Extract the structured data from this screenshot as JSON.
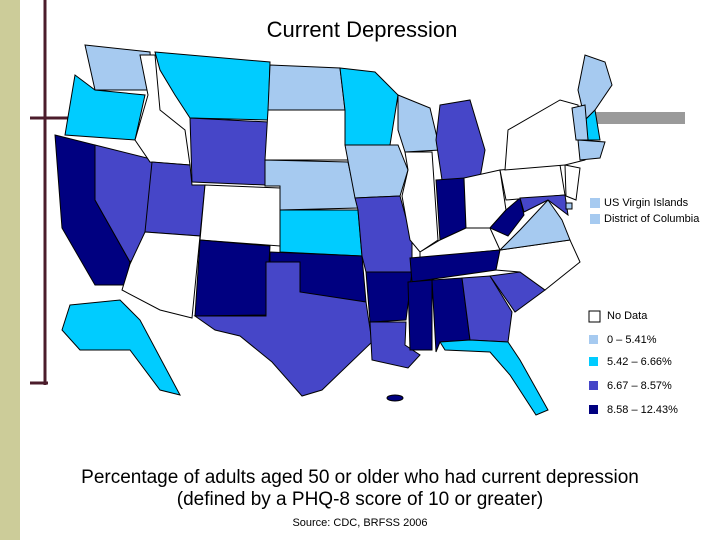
{
  "title": "Current Depression",
  "territories": [
    {
      "label": "US Virgin Islands",
      "class": 1
    },
    {
      "label": "District of Columbia",
      "class": 1
    }
  ],
  "legend": {
    "items": [
      {
        "label": "No Data",
        "color": "#ffffff"
      },
      {
        "label": "0 – 5.41%",
        "color": "#a6caf0"
      },
      {
        "label": "5.42 – 6.66%",
        "color": "#00ccff"
      },
      {
        "label": "6.67 – 8.57%",
        "color": "#4646c8"
      },
      {
        "label": "8.58 – 12.43%",
        "color": "#000080"
      }
    ]
  },
  "caption": [
    "Percentage of adults aged 50 or older who had current depression",
    "(defined by a PHQ-8 score of 10 or greater)"
  ],
  "source": "Source:  CDC, BRFSS 2006"
}
